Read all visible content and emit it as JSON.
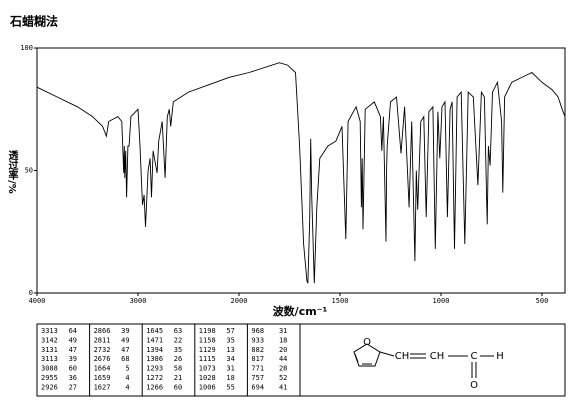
{
  "chart_data": {
    "type": "line",
    "title": "石蜡糊法",
    "x_label": "波数/cm⁻¹",
    "y_label": "透过率/%",
    "x": [
      4000,
      3800,
      3600,
      3450,
      3350,
      3313,
      3290,
      3200,
      3160,
      3142,
      3136,
      3131,
      3122,
      3113,
      3100,
      3088,
      3070,
      3000,
      2980,
      2955,
      2940,
      2926,
      2900,
      2880,
      2866,
      2850,
      2811,
      2795,
      2760,
      2732,
      2710,
      2690,
      2676,
      2650,
      2500,
      2300,
      2100,
      1950,
      1800,
      1760,
      1720,
      1700,
      1680,
      1664,
      1659,
      1650,
      1645,
      1640,
      1627,
      1615,
      1600,
      1560,
      1520,
      1490,
      1471,
      1460,
      1420,
      1400,
      1394,
      1390,
      1386,
      1375,
      1330,
      1300,
      1293,
      1285,
      1272,
      1269,
      1266,
      1250,
      1220,
      1198,
      1180,
      1158,
      1145,
      1129,
      1122,
      1115,
      1100,
      1085,
      1073,
      1060,
      1040,
      1028,
      1015,
      1006,
      995,
      980,
      968,
      955,
      945,
      933,
      920,
      900,
      882,
      865,
      840,
      817,
      800,
      785,
      771,
      765,
      757,
      745,
      720,
      700,
      694,
      685,
      650,
      600,
      550,
      500,
      450,
      420,
      400,
      386
    ],
    "series": [
      {
        "color": "#000000",
        "values": [
          84,
          80,
          76,
          72,
          68,
          64,
          70,
          72,
          70,
          49,
          60,
          47,
          58,
          39,
          60,
          60,
          72,
          75,
          60,
          36,
          40,
          27,
          50,
          55,
          39,
          58,
          49,
          62,
          70,
          47,
          72,
          75,
          68,
          78,
          82,
          85,
          88,
          90,
          94,
          93,
          90,
          60,
          20,
          5,
          4,
          30,
          63,
          40,
          4,
          35,
          55,
          60,
          62,
          68,
          22,
          70,
          76,
          70,
          35,
          55,
          26,
          75,
          78,
          72,
          58,
          72,
          21,
          50,
          60,
          78,
          80,
          57,
          76,
          35,
          70,
          13,
          50,
          34,
          70,
          72,
          31,
          74,
          76,
          18,
          74,
          55,
          76,
          78,
          31,
          75,
          78,
          18,
          80,
          82,
          20,
          82,
          80,
          44,
          82,
          80,
          28,
          60,
          52,
          82,
          86,
          70,
          41,
          80,
          86,
          88,
          90,
          86,
          83,
          80,
          75,
          72
        ]
      }
    ],
    "xlim": [
      4000,
      386
    ],
    "ylim": [
      0,
      100
    ],
    "xticks": [
      4000,
      3000,
      2000,
      1500,
      1000,
      500
    ],
    "yticks": [
      0,
      50,
      100
    ]
  },
  "peak_table": {
    "rows": [
      [
        "3313",
        "64"
      ],
      [
        "3142",
        "49"
      ],
      [
        "3131",
        "47"
      ],
      [
        "3113",
        "39"
      ],
      [
        "3088",
        "60"
      ],
      [
        "2955",
        "36"
      ],
      [
        "2926",
        "27"
      ],
      [
        "2866",
        "39"
      ],
      [
        "2811",
        "49"
      ],
      [
        "2732",
        "47"
      ],
      [
        "2676",
        "68"
      ],
      [
        "1664",
        "5"
      ],
      [
        "1659",
        "4"
      ],
      [
        "1627",
        "4"
      ],
      [
        "1645",
        "63"
      ],
      [
        "1471",
        "22"
      ],
      [
        "1394",
        "35"
      ],
      [
        "1386",
        "26"
      ],
      [
        "1293",
        "58"
      ],
      [
        "1272",
        "21"
      ],
      [
        "1266",
        "60"
      ],
      [
        "1198",
        "57"
      ],
      [
        "1158",
        "35"
      ],
      [
        "1129",
        "13"
      ],
      [
        "1115",
        "34"
      ],
      [
        "1073",
        "31"
      ],
      [
        "1028",
        "18"
      ],
      [
        "1006",
        "55"
      ],
      [
        "968",
        "31"
      ],
      [
        "933",
        "18"
      ],
      [
        "882",
        "20"
      ],
      [
        "817",
        "44"
      ],
      [
        "771",
        "28"
      ],
      [
        "757",
        "52"
      ],
      [
        "694",
        "41"
      ]
    ]
  },
  "structure": {
    "labels": [
      "O",
      "CH",
      "CH",
      "C",
      "H",
      "O"
    ]
  }
}
